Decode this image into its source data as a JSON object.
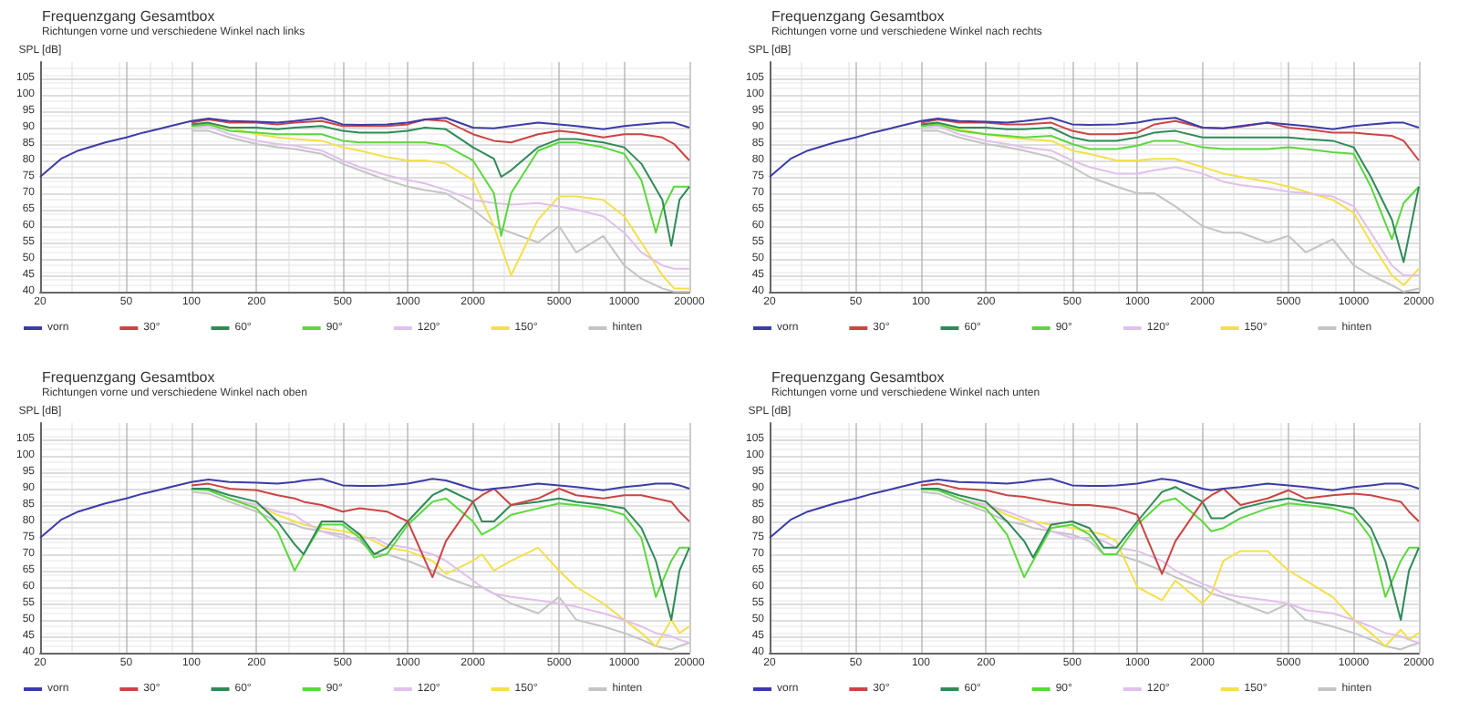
{
  "chart_data": [
    {
      "type": "line",
      "title": "Frequenzgang Gesamtbox",
      "subtitle": "Richtungen vorne und verschiedene Winkel nach links",
      "ylabel": "SPL [dB]",
      "log": "x",
      "grid": true,
      "legend": "bottom",
      "marker": "none",
      "xlim": [
        20,
        20000
      ],
      "xticks": [
        20,
        50,
        100,
        200,
        500,
        1000,
        2000,
        5000,
        10000,
        20000
      ],
      "ylim": [
        40,
        110
      ],
      "yticks": [
        40,
        45,
        50,
        55,
        60,
        65,
        70,
        75,
        80,
        85,
        90,
        95,
        100,
        105
      ],
      "x": [
        20,
        25,
        30,
        40,
        50,
        60,
        70,
        80,
        100,
        120,
        150,
        200,
        250,
        300,
        400,
        500,
        600,
        800,
        1000,
        1200,
        1500,
        2000,
        2500,
        3000,
        4000,
        5000,
        6000,
        8000,
        10000,
        12000,
        15000,
        17000,
        20000
      ],
      "series": [
        {
          "name": "vorn",
          "color": "#3c3ca8",
          "values": [
            75,
            80.5,
            83,
            85.5,
            87,
            88.5,
            89.5,
            90.5,
            92,
            92.8,
            92,
            91.8,
            91.5,
            92,
            93,
            91,
            90.8,
            91,
            91.5,
            92.5,
            93,
            90,
            89.8,
            90.5,
            91.5,
            91,
            90.5,
            89.5,
            90.5,
            91,
            91.5,
            91.5,
            90
          ]
        },
        {
          "name": "30°",
          "color": "#cc4444",
          "values": [
            null,
            null,
            null,
            null,
            null,
            null,
            null,
            null,
            91.5,
            92.5,
            91.5,
            91.5,
            91,
            91.5,
            92,
            90.5,
            90.5,
            90.5,
            91,
            92.5,
            92,
            88,
            86,
            85.5,
            88,
            89,
            88.5,
            87,
            88,
            88,
            87,
            85,
            80
          ]
        },
        {
          "name": "60°",
          "color": "#2e8b57",
          "x": [
            100,
            120,
            150,
            200,
            250,
            300,
            400,
            500,
            600,
            800,
            1000,
            1200,
            1500,
            2000,
            2500,
            2700,
            3000,
            4000,
            5000,
            6000,
            8000,
            10000,
            12000,
            15000,
            16500,
            18000,
            20000
          ],
          "values": [
            91,
            91.5,
            90,
            90,
            89.5,
            90,
            90.5,
            89,
            88.5,
            88.5,
            89,
            90,
            89.5,
            84,
            80.5,
            75,
            77,
            84,
            86.5,
            86.5,
            85.5,
            84,
            79,
            68,
            54,
            68,
            72
          ]
        },
        {
          "name": "90°",
          "color": "#5ad83c",
          "x": [
            100,
            120,
            150,
            200,
            250,
            300,
            400,
            500,
            600,
            800,
            1000,
            1200,
            1500,
            2000,
            2500,
            2700,
            3000,
            4000,
            5000,
            6000,
            8000,
            10000,
            12000,
            14000,
            15000,
            17000,
            20000
          ],
          "values": [
            90.5,
            91,
            89,
            88.5,
            88,
            88,
            88,
            86,
            85.5,
            85.5,
            85.5,
            85.5,
            84.5,
            80,
            70,
            57,
            70,
            83,
            85.5,
            85.5,
            84,
            82,
            74,
            58,
            65,
            72,
            72
          ]
        },
        {
          "name": "120°",
          "color": "#e0c0ec",
          "values": [
            null,
            null,
            null,
            null,
            null,
            null,
            null,
            null,
            90,
            90.5,
            88,
            86,
            85,
            84.5,
            83,
            80,
            78,
            75.5,
            74,
            73,
            71,
            68,
            67,
            66.5,
            67,
            66,
            65,
            63,
            58,
            52,
            48,
            47,
            47
          ]
        },
        {
          "name": "150°",
          "color": "#f4e04a",
          "values": [
            null,
            null,
            null,
            null,
            null,
            null,
            null,
            null,
            90.5,
            91,
            90,
            88,
            87,
            86.5,
            86,
            84,
            83,
            81,
            80,
            80,
            79,
            74,
            60,
            45,
            62,
            69,
            69,
            68,
            63,
            55,
            45,
            41,
            41
          ]
        },
        {
          "name": "hinten",
          "color": "#c4c4c4",
          "values": [
            null,
            null,
            null,
            null,
            null,
            null,
            null,
            null,
            89,
            89,
            87,
            85,
            84,
            83.5,
            82,
            79,
            77,
            74,
            72,
            71,
            70,
            65,
            60,
            58,
            55,
            60,
            52,
            57,
            48,
            44,
            41,
            40,
            40
          ]
        }
      ]
    },
    {
      "type": "line",
      "title": "Frequenzgang Gesamtbox",
      "subtitle": "Richtungen vorne und verschiedene Winkel nach rechts",
      "ylabel": "SPL [dB]",
      "log": "x",
      "grid": true,
      "legend": "bottom",
      "marker": "none",
      "xlim": [
        20,
        20000
      ],
      "xticks": [
        20,
        50,
        100,
        200,
        500,
        1000,
        2000,
        5000,
        10000,
        20000
      ],
      "ylim": [
        40,
        110
      ],
      "yticks": [
        40,
        45,
        50,
        55,
        60,
        65,
        70,
        75,
        80,
        85,
        90,
        95,
        100,
        105
      ],
      "x": [
        20,
        25,
        30,
        40,
        50,
        60,
        70,
        80,
        100,
        120,
        150,
        200,
        250,
        300,
        400,
        500,
        600,
        800,
        1000,
        1200,
        1500,
        2000,
        2500,
        3000,
        4000,
        5000,
        6000,
        8000,
        10000,
        12000,
        15000,
        17000,
        20000
      ],
      "series": [
        {
          "name": "vorn",
          "color": "#3c3ca8",
          "values": [
            75,
            80.5,
            83,
            85.5,
            87,
            88.5,
            89.5,
            90.5,
            92,
            92.8,
            92,
            91.8,
            91.5,
            92,
            93,
            91,
            90.8,
            91,
            91.5,
            92.5,
            93,
            90,
            89.8,
            90.5,
            91.5,
            91,
            90.5,
            89.5,
            90.5,
            91,
            91.5,
            91.5,
            90
          ]
        },
        {
          "name": "30°",
          "color": "#cc4444",
          "values": [
            null,
            null,
            null,
            null,
            null,
            null,
            null,
            null,
            91.5,
            92.5,
            91.5,
            91.5,
            91,
            91,
            91.5,
            89,
            88,
            88,
            88.5,
            91,
            92,
            90,
            89.8,
            90.3,
            91.5,
            90,
            89.5,
            88.5,
            88.5,
            88,
            87.5,
            86,
            80
          ]
        },
        {
          "name": "60°",
          "color": "#2e8b57",
          "values": [
            null,
            null,
            null,
            null,
            null,
            null,
            null,
            null,
            91,
            91.5,
            90,
            90,
            89.5,
            89.5,
            90,
            87,
            86,
            86,
            87,
            88.5,
            89,
            87,
            87,
            87,
            87,
            87,
            86.5,
            86,
            84,
            75,
            62,
            49,
            72
          ]
        },
        {
          "name": "90°",
          "color": "#5ad83c",
          "values": [
            null,
            null,
            null,
            null,
            null,
            null,
            null,
            null,
            90.5,
            91,
            89,
            88,
            87.5,
            87,
            87.5,
            85,
            83.5,
            83.5,
            84.5,
            86,
            86,
            84,
            83.5,
            83.5,
            83.5,
            84,
            83.5,
            82.5,
            82,
            72,
            56,
            67,
            72
          ]
        },
        {
          "name": "120°",
          "color": "#e0c0ec",
          "values": [
            null,
            null,
            null,
            null,
            null,
            null,
            null,
            null,
            90,
            90.5,
            88,
            86,
            85,
            84,
            83,
            80,
            78,
            76,
            76,
            77,
            78,
            76,
            73.5,
            72.5,
            71.5,
            70.5,
            70,
            69,
            66,
            58,
            48,
            45,
            45
          ]
        },
        {
          "name": "150°",
          "color": "#f4e04a",
          "values": [
            null,
            null,
            null,
            null,
            null,
            null,
            null,
            null,
            90.5,
            91,
            89.5,
            88,
            87,
            86.5,
            86,
            83,
            82,
            80,
            80,
            80.5,
            80.5,
            78,
            76,
            75,
            73.5,
            72,
            70.5,
            68,
            64,
            55,
            45,
            42,
            47
          ]
        },
        {
          "name": "hinten",
          "color": "#c4c4c4",
          "values": [
            null,
            null,
            null,
            null,
            null,
            null,
            null,
            null,
            89,
            89,
            87,
            85,
            84,
            83,
            81,
            78,
            75,
            72,
            70,
            70,
            66,
            60,
            58,
            58,
            55,
            57,
            52,
            56,
            48,
            45,
            42,
            40,
            41
          ]
        }
      ]
    },
    {
      "type": "line",
      "title": "Frequenzgang Gesamtbox",
      "subtitle": "Richtungen vorne und verschiedene Winkel nach oben",
      "ylabel": "SPL [dB]",
      "log": "x",
      "grid": true,
      "legend": "bottom",
      "marker": "none",
      "xlim": [
        20,
        20000
      ],
      "xticks": [
        20,
        50,
        100,
        200,
        500,
        1000,
        2000,
        5000,
        10000,
        20000
      ],
      "ylim": [
        40,
        110
      ],
      "yticks": [
        40,
        45,
        50,
        55,
        60,
        65,
        70,
        75,
        80,
        85,
        90,
        95,
        100,
        105
      ],
      "x": [
        20,
        25,
        30,
        40,
        50,
        60,
        70,
        80,
        100,
        120,
        150,
        200,
        250,
        300,
        330,
        400,
        500,
        600,
        700,
        800,
        1000,
        1300,
        1500,
        2000,
        2200,
        2500,
        3000,
        4000,
        5000,
        6000,
        8000,
        10000,
        12000,
        14000,
        16500,
        18000,
        20000
      ],
      "series": [
        {
          "name": "vorn",
          "color": "#3c3ca8",
          "values": [
            75,
            80.5,
            83,
            85.5,
            87,
            88.5,
            89.5,
            90.5,
            92,
            92.8,
            92,
            91.8,
            91.5,
            92,
            92.5,
            93,
            91,
            90.8,
            90.8,
            91,
            91.5,
            93,
            92.5,
            90,
            89.5,
            90,
            90.5,
            91.5,
            91,
            90.5,
            89.5,
            90.5,
            91,
            91.5,
            91.5,
            91,
            90
          ]
        },
        {
          "name": "30°",
          "color": "#cc4444",
          "values": [
            null,
            null,
            null,
            null,
            null,
            null,
            null,
            null,
            91,
            91.5,
            90,
            89.5,
            88,
            87,
            86,
            85,
            83,
            84,
            83.5,
            83,
            80,
            63,
            74,
            86,
            88,
            90,
            85,
            87,
            90,
            88,
            87,
            88,
            88,
            87,
            86,
            83,
            80
          ]
        },
        {
          "name": "60°",
          "color": "#2e8b57",
          "values": [
            null,
            null,
            null,
            null,
            null,
            null,
            null,
            null,
            90,
            90,
            88,
            86,
            80,
            73,
            70,
            80,
            80,
            76,
            70,
            72,
            80,
            88,
            90,
            86,
            80,
            80,
            85,
            86,
            87,
            86,
            85,
            84,
            78,
            68,
            50,
            65,
            72
          ]
        },
        {
          "name": "90°",
          "color": "#5ad83c",
          "values": [
            null,
            null,
            null,
            null,
            null,
            null,
            null,
            null,
            89.8,
            89.5,
            87,
            84,
            77,
            65,
            70,
            79,
            79,
            75,
            69,
            70,
            79,
            86,
            87,
            80,
            76,
            78,
            82,
            84,
            85.5,
            85,
            84,
            82,
            75,
            57,
            68,
            72,
            72
          ]
        },
        {
          "name": "120°",
          "color": "#e0c0ec",
          "values": [
            null,
            null,
            null,
            null,
            null,
            null,
            null,
            null,
            90,
            89.5,
            87,
            85,
            83,
            82,
            80,
            77,
            75,
            75,
            75,
            73,
            72,
            70,
            68,
            62,
            60,
            58,
            57,
            56,
            55,
            54,
            52,
            50,
            48,
            46,
            45,
            44,
            43
          ]
        },
        {
          "name": "150°",
          "color": "#f4e04a",
          "values": [
            null,
            null,
            null,
            null,
            null,
            null,
            null,
            null,
            null,
            null,
            87,
            85,
            82,
            80,
            79,
            78,
            77,
            76,
            74,
            72,
            71,
            68,
            64,
            68,
            70,
            65,
            68,
            72,
            65,
            60,
            55,
            50,
            46,
            42,
            50,
            46,
            48
          ]
        },
        {
          "name": "hinten",
          "color": "#c4c4c4",
          "values": [
            null,
            null,
            null,
            null,
            null,
            null,
            null,
            null,
            89,
            88.5,
            86,
            83,
            80,
            79,
            78,
            77,
            76,
            74,
            70,
            70,
            68,
            65,
            63,
            60,
            60,
            58,
            55,
            52,
            57,
            50,
            48,
            46,
            44,
            42,
            41,
            42,
            43
          ]
        }
      ]
    },
    {
      "type": "line",
      "title": "Frequenzgang Gesamtbox",
      "subtitle": "Richtungen vorne und verschiedene Winkel nach unten",
      "ylabel": "SPL [dB]",
      "log": "x",
      "grid": true,
      "legend": "bottom",
      "marker": "none",
      "xlim": [
        20,
        20000
      ],
      "xticks": [
        20,
        50,
        100,
        200,
        500,
        1000,
        2000,
        5000,
        10000,
        20000
      ],
      "ylim": [
        40,
        110
      ],
      "yticks": [
        40,
        45,
        50,
        55,
        60,
        65,
        70,
        75,
        80,
        85,
        90,
        95,
        100,
        105
      ],
      "x": [
        20,
        25,
        30,
        40,
        50,
        60,
        70,
        80,
        100,
        120,
        150,
        200,
        250,
        300,
        330,
        400,
        500,
        600,
        700,
        800,
        1000,
        1300,
        1500,
        2000,
        2200,
        2500,
        3000,
        4000,
        5000,
        6000,
        8000,
        10000,
        12000,
        14000,
        16500,
        18000,
        20000
      ],
      "series": [
        {
          "name": "vorn",
          "color": "#3c3ca8",
          "values": [
            75,
            80.5,
            83,
            85.5,
            87,
            88.5,
            89.5,
            90.5,
            92,
            92.8,
            92,
            91.8,
            91.5,
            92,
            92.5,
            93,
            91,
            90.8,
            90.8,
            91,
            91.5,
            93,
            92.5,
            90,
            89.5,
            90,
            90.5,
            91.5,
            91,
            90.5,
            89.5,
            90.5,
            91,
            91.5,
            91.5,
            91,
            90
          ]
        },
        {
          "name": "30°",
          "color": "#cc4444",
          "values": [
            null,
            null,
            null,
            null,
            null,
            null,
            null,
            null,
            91,
            91.5,
            90,
            89.5,
            88,
            87.5,
            87,
            86,
            85,
            85,
            84.5,
            84,
            82,
            64,
            74,
            86,
            88,
            90,
            85,
            87,
            89.5,
            87,
            88,
            88.5,
            88,
            87,
            86,
            83,
            80
          ]
        },
        {
          "name": "60°",
          "color": "#2e8b57",
          "values": [
            null,
            null,
            null,
            null,
            null,
            null,
            null,
            null,
            90,
            90,
            88,
            86,
            80,
            74,
            69,
            79,
            80,
            78,
            72,
            72,
            80,
            89,
            90.5,
            86,
            81,
            81,
            84,
            86,
            87,
            86,
            85,
            84,
            78,
            68,
            50,
            65,
            72
          ]
        },
        {
          "name": "90°",
          "color": "#5ad83c",
          "values": [
            null,
            null,
            null,
            null,
            null,
            null,
            null,
            null,
            89.8,
            89.5,
            87,
            84,
            76,
            63,
            68,
            78,
            79,
            76,
            70,
            70,
            79,
            86,
            87,
            80,
            77,
            78,
            81,
            84,
            85.5,
            85,
            84,
            82,
            75,
            57,
            68,
            72,
            72
          ]
        },
        {
          "name": "120°",
          "color": "#e0c0ec",
          "values": [
            null,
            null,
            null,
            null,
            null,
            null,
            null,
            null,
            90,
            89.5,
            87,
            85,
            83,
            81,
            80,
            77,
            75,
            75,
            74,
            72,
            71,
            68,
            65,
            61,
            60,
            58,
            57,
            56,
            55,
            53,
            52,
            50,
            48,
            46,
            45,
            44,
            43
          ]
        },
        {
          "name": "150°",
          "color": "#f4e04a",
          "values": [
            null,
            null,
            null,
            null,
            null,
            null,
            null,
            null,
            null,
            null,
            87,
            85,
            82,
            80,
            80,
            79,
            78,
            77,
            76,
            74,
            60,
            56,
            62,
            55,
            58,
            68,
            71,
            71,
            65,
            62,
            57,
            50,
            46,
            42,
            47,
            44,
            46
          ]
        },
        {
          "name": "hinten",
          "color": "#c4c4c4",
          "values": [
            null,
            null,
            null,
            null,
            null,
            null,
            null,
            null,
            89,
            88.5,
            86,
            83,
            80,
            79,
            78,
            77,
            76,
            74,
            70,
            70,
            68,
            65,
            63,
            60,
            58,
            57,
            55,
            52,
            55,
            50,
            48,
            46,
            44,
            42,
            41,
            42,
            43
          ]
        }
      ]
    }
  ]
}
